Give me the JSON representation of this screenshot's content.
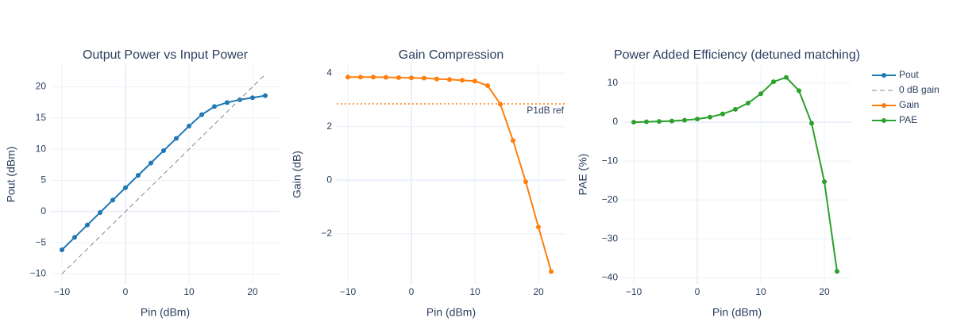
{
  "chart_data": [
    {
      "type": "line",
      "title": "Output Power vs Input Power",
      "x_label": "Pin (dBm)",
      "y_label": "Pout (dBm)",
      "x": [
        -10,
        -8,
        -6,
        -4,
        -2,
        0,
        2,
        4,
        6,
        8,
        10,
        12,
        14,
        16,
        18,
        20,
        22
      ],
      "series": [
        {
          "name": "Pout",
          "color": "#1f77b4",
          "markers": true,
          "values": [
            -6.15,
            -4.15,
            -2.15,
            -0.16,
            1.83,
            3.82,
            5.81,
            7.78,
            9.76,
            11.73,
            13.7,
            15.53,
            16.84,
            17.48,
            17.94,
            18.25,
            18.59
          ]
        },
        {
          "name": "0 dB gain",
          "color": "#888888",
          "dash": true,
          "x": [
            -10,
            22
          ],
          "values": [
            -10,
            22
          ]
        }
      ],
      "xlim": [
        -11.75,
        24.25
      ],
      "ylim": [
        -11.6,
        23.5
      ],
      "xticks": [
        {
          "value": -10,
          "label": "−10"
        },
        0,
        10,
        20
      ],
      "yticks": [
        {
          "value": -10,
          "label": "−10"
        },
        {
          "value": -5,
          "label": "−5"
        },
        0,
        5,
        10,
        15,
        20
      ],
      "grid": true
    },
    {
      "type": "line",
      "title": "Gain Compression",
      "x_label": "Pin (dBm)",
      "y_label": "Gain (dB)",
      "x": [
        -10,
        -8,
        -6,
        -4,
        -2,
        0,
        2,
        4,
        6,
        8,
        10,
        12,
        14,
        16,
        18,
        20,
        22
      ],
      "series": [
        {
          "name": "Gain",
          "color": "#ff7f0e",
          "markers": true,
          "values": [
            3.85,
            3.85,
            3.85,
            3.84,
            3.83,
            3.82,
            3.81,
            3.78,
            3.76,
            3.73,
            3.7,
            3.53,
            2.84,
            1.48,
            -0.06,
            -1.75,
            -3.41
          ]
        }
      ],
      "reference_line": {
        "value": 2.85,
        "label": "P1dB ref",
        "color": "#ff7f0e"
      },
      "xlim": [
        -11.75,
        24.25
      ],
      "ylim": [
        -3.87,
        4.3
      ],
      "xticks": [
        {
          "value": -10,
          "label": "−10"
        },
        0,
        10,
        20
      ],
      "yticks": [
        {
          "value": -2,
          "label": "−2"
        },
        0,
        2,
        4
      ],
      "grid": true
    },
    {
      "type": "line",
      "title": "Power Added Efficiency (detuned matching)",
      "x_label": "Pin (dBm)",
      "y_label": "PAE (%)",
      "x": [
        -10,
        -8,
        -6,
        -4,
        -2,
        0,
        2,
        4,
        6,
        8,
        10,
        12,
        14,
        16,
        18,
        20,
        22
      ],
      "series": [
        {
          "name": "PAE",
          "color": "#2ca02c",
          "markers": true,
          "values": [
            0,
            0.1,
            0.2,
            0.3,
            0.5,
            0.8,
            1.3,
            2.1,
            3.3,
            4.9,
            7.3,
            10.4,
            11.5,
            8.1,
            -0.3,
            -15.3,
            -38.4
          ]
        }
      ],
      "xlim": [
        -11.75,
        24.25
      ],
      "ylim": [
        -41.6,
        14.7
      ],
      "xticks": [
        {
          "value": -10,
          "label": "−10"
        },
        0,
        10,
        20
      ],
      "yticks": [
        {
          "value": -40,
          "label": "−40"
        },
        {
          "value": -30,
          "label": "−30"
        },
        {
          "value": -20,
          "label": "−20"
        },
        {
          "value": -10,
          "label": "−10"
        },
        0,
        10
      ],
      "grid": true
    }
  ]
}
